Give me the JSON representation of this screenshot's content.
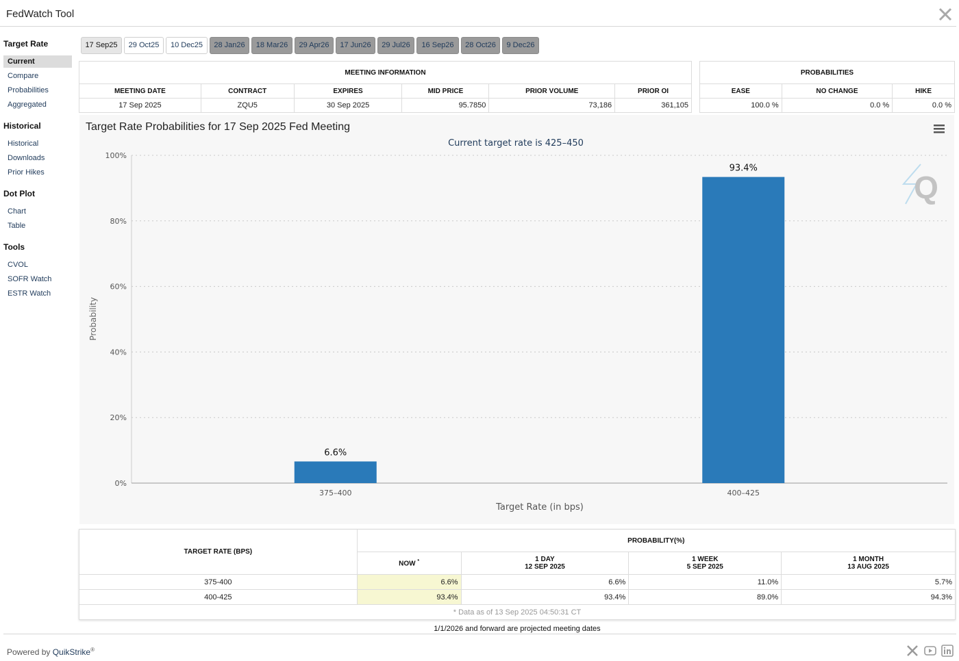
{
  "app": {
    "title": "FedWatch Tool"
  },
  "sidebar": {
    "groups": [
      {
        "title": "Target Rate",
        "items": [
          "Current",
          "Compare",
          "Probabilities",
          "Aggregated"
        ]
      },
      {
        "title": "Historical",
        "items": [
          "Historical",
          "Downloads",
          "Prior Hikes"
        ]
      },
      {
        "title": "Dot Plot",
        "items": [
          "Chart",
          "Table"
        ]
      },
      {
        "title": "Tools",
        "items": [
          "CVOL",
          "SOFR Watch",
          "ESTR Watch"
        ]
      }
    ],
    "active_item": "Current"
  },
  "date_tabs": [
    "17 Sep25",
    "29 Oct25",
    "10 Dec25",
    "28 Jan26",
    "18 Mar26",
    "29 Apr26",
    "17 Jun26",
    "29 Jul26",
    "16 Sep26",
    "28 Oct26",
    "9 Dec26"
  ],
  "meeting_info": {
    "header": "MEETING INFORMATION",
    "columns": [
      "MEETING DATE",
      "CONTRACT",
      "EXPIRES",
      "MID PRICE",
      "PRIOR VOLUME",
      "PRIOR OI"
    ],
    "row": [
      "17 Sep 2025",
      "ZQU5",
      "30 Sep 2025",
      "95.7850",
      "73,186",
      "361,105"
    ]
  },
  "probabilities": {
    "header": "PROBABILITIES",
    "columns": [
      "EASE",
      "NO CHANGE",
      "HIKE"
    ],
    "row": [
      "100.0 %",
      "0.0 %",
      "0.0 %"
    ]
  },
  "chart_data": {
    "type": "bar",
    "title": "Target Rate Probabilities for 17 Sep 2025 Fed Meeting",
    "subtitle": "Current target rate is 425–450",
    "categories": [
      "375–400",
      "400–425"
    ],
    "values": [
      6.6,
      93.4
    ],
    "data_labels": [
      "6.6%",
      "93.4%"
    ],
    "xlabel": "Target Rate (in bps)",
    "ylabel": "Probability",
    "ylim": [
      0,
      100
    ],
    "yticks": [
      0,
      20,
      40,
      60,
      80,
      100
    ],
    "ytick_labels": [
      "0%",
      "20%",
      "40%",
      "60%",
      "80%",
      "100%"
    ],
    "grid": true,
    "bar_color": "#2a7ab9"
  },
  "history": {
    "target_rate_header": "TARGET RATE (BPS)",
    "probability_header": "PROBABILITY(%)",
    "now_label": "NOW",
    "now_mark": "*",
    "periods": [
      {
        "label": "1 DAY",
        "date": "12 SEP 2025"
      },
      {
        "label": "1 WEEK",
        "date": "5 SEP 2025"
      },
      {
        "label": "1 MONTH",
        "date": "13 AUG 2025"
      }
    ],
    "rows": [
      {
        "rate": "375-400",
        "now": "6.6%",
        "day": "6.6%",
        "week": "11.0%",
        "month": "5.7%"
      },
      {
        "rate": "400-425",
        "now": "93.4%",
        "day": "93.4%",
        "week": "89.0%",
        "month": "94.3%"
      }
    ],
    "note": "* Data as of 13 Sep 2025 04:50:31 CT"
  },
  "footnote": "1/1/2026 and forward are projected meeting dates",
  "footer": {
    "powered_by": "Powered by ",
    "brand": "QuikStrike",
    "reg": "®"
  },
  "colors": {
    "accent": "#2a7ab9",
    "highlight": "#f7f7d2",
    "projected_tab": "#9a9a9a"
  }
}
